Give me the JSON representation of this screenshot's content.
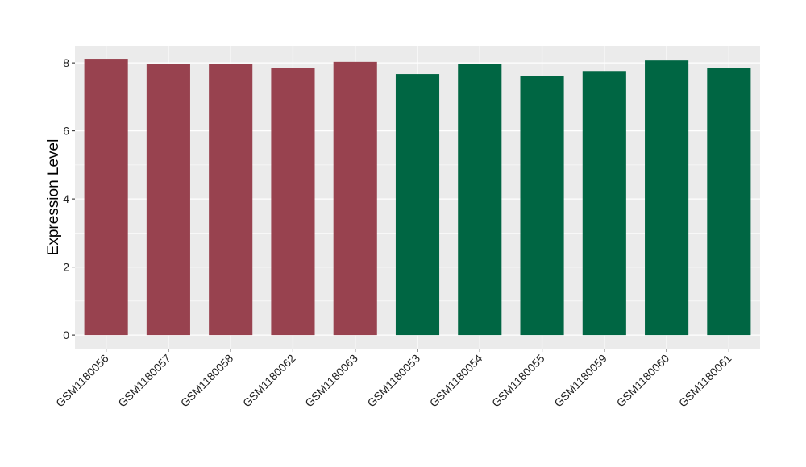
{
  "chart_data": {
    "type": "bar",
    "title": "",
    "xlabel": "",
    "ylabel": "Expression Level",
    "ylim": [
      -0.4,
      8.5
    ],
    "yticks": [
      0,
      2,
      4,
      6,
      8
    ],
    "grid": true,
    "legend": "none",
    "categories": [
      "GSM1180056",
      "GSM1180057",
      "GSM1180058",
      "GSM1180062",
      "GSM1180063",
      "GSM1180053",
      "GSM1180054",
      "GSM1180055",
      "GSM1180059",
      "GSM1180060",
      "GSM1180061"
    ],
    "values": [
      8.12,
      7.96,
      7.96,
      7.86,
      8.03,
      7.67,
      7.96,
      7.62,
      7.76,
      8.07,
      7.86
    ],
    "bar_colors": [
      "#98424F",
      "#98424F",
      "#98424F",
      "#98424F",
      "#98424F",
      "#006643",
      "#006643",
      "#006643",
      "#006643",
      "#006643",
      "#006643"
    ],
    "panel_background": "#EBEBEB",
    "gridline_color": "#FFFFFF"
  }
}
